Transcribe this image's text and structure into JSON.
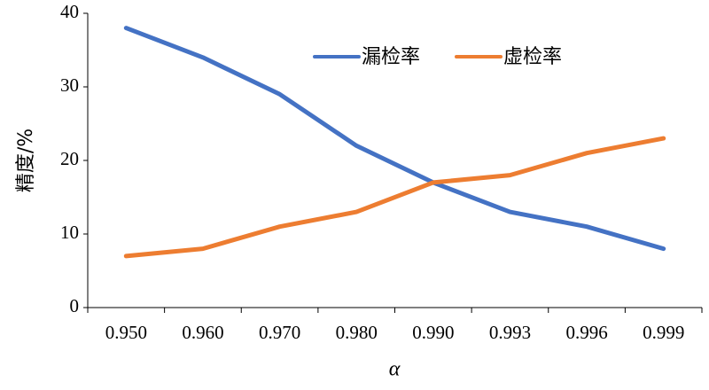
{
  "chart_data": {
    "type": "line",
    "categories": [
      "0.950",
      "0.960",
      "0.970",
      "0.980",
      "0.990",
      "0.993",
      "0.996",
      "0.999"
    ],
    "series": [
      {
        "name": "漏检率",
        "color": "#4472C4",
        "values": [
          38,
          34,
          29,
          22,
          17,
          13,
          11,
          8
        ]
      },
      {
        "name": "虚检率",
        "color": "#ED7D31",
        "values": [
          7,
          8,
          11,
          13,
          17,
          18,
          21,
          23
        ]
      }
    ],
    "xlabel": "α",
    "ylabel": "精度/%",
    "ylim": [
      0,
      40
    ],
    "yticks": [
      "0",
      "10",
      "20",
      "30",
      "40"
    ],
    "grid": false,
    "legend": "top-right"
  }
}
